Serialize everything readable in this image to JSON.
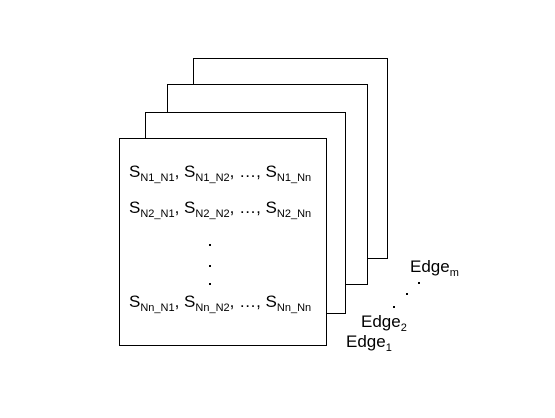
{
  "matrix": {
    "rows": [
      [
        [
          "S",
          "N1_N1"
        ],
        [
          "S",
          "N1_N2"
        ],
        [
          "S",
          "N1_Nn"
        ]
      ],
      [
        [
          "S",
          "N2_N1"
        ],
        [
          "S",
          "N2_N2"
        ],
        [
          "S",
          "N2_Nn"
        ]
      ],
      [
        [
          "S",
          "Nn_N1"
        ],
        [
          "S",
          "Nn_N2"
        ],
        [
          "S",
          "Nn_Nn"
        ]
      ]
    ],
    "separator": ", ",
    "ellipsis": "…, "
  },
  "edges": {
    "edge_m": {
      "base": "Edge",
      "sub": "m"
    },
    "edge_2": {
      "base": "Edge",
      "sub": "2"
    },
    "edge_1": {
      "base": "Edge",
      "sub": "1"
    }
  }
}
